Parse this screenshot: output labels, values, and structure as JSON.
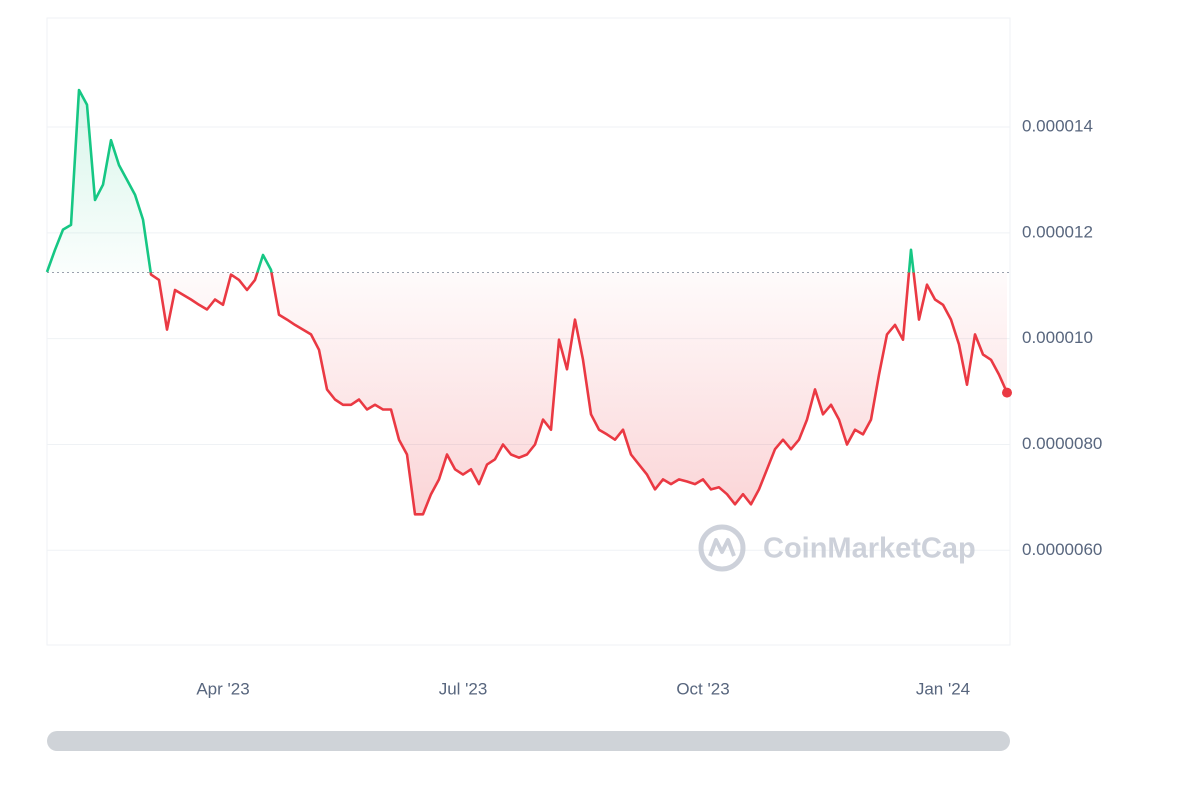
{
  "chart_data": {
    "type": "line",
    "watermark": "CoinMarketCap",
    "categories": [
      null,
      null,
      null,
      null,
      null,
      null,
      null,
      null,
      null,
      null,
      null,
      null,
      null,
      null,
      null,
      null,
      null,
      null,
      null,
      null,
      null,
      null,
      "Apr '23",
      null,
      null,
      null,
      null,
      null,
      null,
      null,
      null,
      null,
      null,
      null,
      null,
      null,
      null,
      null,
      null,
      null,
      null,
      null,
      null,
      null,
      null,
      null,
      null,
      null,
      null,
      null,
      null,
      null,
      "Jul '23",
      null,
      null,
      null,
      null,
      null,
      null,
      null,
      null,
      null,
      null,
      null,
      null,
      null,
      null,
      null,
      null,
      null,
      null,
      null,
      null,
      null,
      null,
      null,
      null,
      null,
      null,
      null,
      null,
      null,
      "Oct '23",
      null,
      null,
      null,
      null,
      null,
      null,
      null,
      null,
      null,
      null,
      null,
      null,
      null,
      null,
      null,
      null,
      null,
      null,
      null,
      null,
      null,
      null,
      null,
      null,
      null,
      null,
      null,
      null,
      null,
      "Jan '24",
      null,
      null,
      null,
      null,
      null,
      null,
      null,
      null
    ],
    "values": [
      1.126e-05,
      1.168e-05,
      1.206e-05,
      1.215e-05,
      1.47e-05,
      1.442e-05,
      1.262e-05,
      1.291e-05,
      1.375e-05,
      1.328e-05,
      1.3e-05,
      1.272e-05,
      1.225e-05,
      1.121e-05,
      1.111e-05,
      1.017e-05,
      1.092e-05,
      1.083e-05,
      1.074e-05,
      1.064e-05,
      1.055e-05,
      1.074e-05,
      1.064e-05,
      1.121e-05,
      1.111e-05,
      1.092e-05,
      1.111e-05,
      1.158e-05,
      1.13e-05,
      1.045e-05,
      1.036e-05,
      1.026e-05,
      1.017e-05,
      1.008e-05,
      9.79e-06,
      9.04e-06,
      8.85e-06,
      8.75e-06,
      8.75e-06,
      8.85e-06,
      8.66e-06,
      8.75e-06,
      8.66e-06,
      8.66e-06,
      8.09e-06,
      7.81e-06,
      6.68e-06,
      6.68e-06,
      7.06e-06,
      7.34e-06,
      7.81e-06,
      7.53e-06,
      7.43e-06,
      7.53e-06,
      7.25e-06,
      7.62e-06,
      7.72e-06,
      8e-06,
      7.81e-06,
      7.75e-06,
      7.81e-06,
      8e-06,
      8.47e-06,
      8.28e-06,
      9.98e-06,
      9.42e-06,
      1.036e-05,
      9.6e-06,
      8.57e-06,
      8.28e-06,
      8.19e-06,
      8.09e-06,
      8.28e-06,
      7.81e-06,
      7.62e-06,
      7.43e-06,
      7.15e-06,
      7.34e-06,
      7.25e-06,
      7.34e-06,
      7.3e-06,
      7.25e-06,
      7.34e-06,
      7.15e-06,
      7.19e-06,
      7.06e-06,
      6.87e-06,
      7.06e-06,
      6.87e-06,
      7.15e-06,
      7.53e-06,
      7.91e-06,
      8.09e-06,
      7.91e-06,
      8.09e-06,
      8.47e-06,
      9.04e-06,
      8.57e-06,
      8.75e-06,
      8.47e-06,
      8e-06,
      8.28e-06,
      8.19e-06,
      8.47e-06,
      9.32e-06,
      1.008e-05,
      1.026e-05,
      9.98e-06,
      1.168e-05,
      1.036e-05,
      1.102e-05,
      1.074e-05,
      1.064e-05,
      1.036e-05,
      9.89e-06,
      9.13e-06,
      1.008e-05,
      9.7e-06,
      9.6e-06,
      9.32e-06,
      8.98e-06
    ],
    "baseline": 1.125e-05,
    "up_color": "#16c784",
    "down_color": "#ea3943",
    "ylim": [
      4.21e-06,
      1.606e-05
    ],
    "yticks": [
      {
        "value": 6e-06,
        "label": "0.0000060"
      },
      {
        "value": 8e-06,
        "label": "0.0000080"
      },
      {
        "value": 1e-05,
        "label": "0.000010"
      },
      1.2e-05,
      1.4e-05
    ],
    "grid": true
  }
}
